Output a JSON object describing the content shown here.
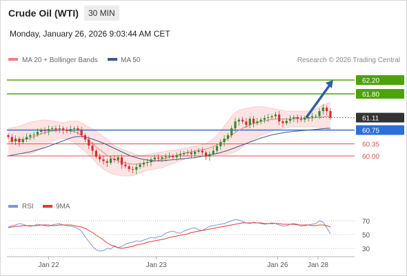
{
  "header": {
    "title": "Crude Oil (WTI)",
    "timeframe": "30 MIN",
    "timestamp": "Monday, January 26, 2026 9:03:44 AM CET"
  },
  "legend": {
    "ma20": "MA 20 + Bollinger Bands",
    "ma50": "MA 50",
    "rsi": "RSI",
    "ma9": "9MA",
    "colors": {
      "ma20": "#f08080",
      "ma50": "#3d5a8c",
      "rsi": "#7f95d6",
      "ma9": "#e53935"
    }
  },
  "research_credit": "Research © 2026 Trading Central",
  "chart_data": [
    {
      "type": "candlestick",
      "ylim": [
        59.2,
        62.6
      ],
      "xlim": [
        0,
        100
      ],
      "x_ticks": [
        {
          "label": "Jan 22",
          "x": 12
        },
        {
          "label": "Jan 23",
          "x": 44
        },
        {
          "label": "Jan 26",
          "x": 80
        },
        {
          "label": "Jan 28",
          "x": 92
        }
      ],
      "levels": [
        {
          "value": 62.2,
          "label": "62.20",
          "role": "target",
          "color": "#4ea20a",
          "style": "badge"
        },
        {
          "value": 61.8,
          "label": "61.80",
          "role": "resistance",
          "color": "#4ea20a",
          "style": "badge"
        },
        {
          "value": 61.11,
          "label": "61.11",
          "role": "last-price",
          "color": "#333333",
          "style": "badge-dark"
        },
        {
          "value": 60.75,
          "label": "60.75",
          "role": "pivot",
          "color": "#2c6fd6",
          "style": "badge"
        },
        {
          "value": 60.35,
          "label": "60.35",
          "role": "support",
          "color": "#e05050",
          "style": "text"
        },
        {
          "value": 60.0,
          "label": "60.00",
          "role": "support",
          "color": "#e05050",
          "style": "text"
        }
      ],
      "arrow": {
        "from": {
          "x": 88.5,
          "y": 61.11
        },
        "to": {
          "x": 96.5,
          "y": 62.2
        },
        "color": "#2f5f9e"
      },
      "closes": [
        60.55,
        60.42,
        60.5,
        60.4,
        60.48,
        60.55,
        60.6,
        60.62,
        60.7,
        60.75,
        60.72,
        60.78,
        60.8,
        60.77,
        60.8,
        60.75,
        60.72,
        60.78,
        60.8,
        60.74,
        60.6,
        60.48,
        60.3,
        60.15,
        59.98,
        59.9,
        59.85,
        59.8,
        59.92,
        59.88,
        59.96,
        59.75,
        59.7,
        59.62,
        59.6,
        59.68,
        59.75,
        59.8,
        59.82,
        59.9,
        59.95,
        59.92,
        59.96,
        59.98,
        60.0,
        59.96,
        60.02,
        60.05,
        60.08,
        60.1,
        60.05,
        60.12,
        60.15,
        60.1,
        59.98,
        60.05,
        60.15,
        60.28,
        60.4,
        60.5,
        60.6,
        60.8,
        61.0,
        61.05,
        61.0,
        60.9,
        61.08,
        60.95,
        61.0,
        61.05,
        61.1,
        61.12,
        61.15,
        61.2,
        61.0,
        60.95,
        61.02,
        61.08,
        61.12,
        61.08,
        61.05,
        61.1,
        61.12,
        61.15,
        61.15,
        61.3,
        61.4,
        61.3,
        61.11
      ],
      "ma20": [
        60.4,
        60.42,
        60.44,
        60.46,
        60.48,
        60.5,
        60.52,
        60.56,
        60.6,
        60.64,
        60.68,
        60.7,
        60.72,
        60.73,
        60.74,
        60.75,
        60.74,
        60.72,
        60.7,
        60.66,
        60.6,
        60.52,
        60.44,
        60.36,
        60.26,
        60.18,
        60.1,
        60.02,
        59.96,
        59.9,
        59.86,
        59.82,
        59.8,
        59.78,
        59.76,
        59.76,
        59.77,
        59.79,
        59.81,
        59.83,
        59.85,
        59.87,
        59.9,
        59.93,
        59.96,
        59.99,
        60.02,
        60.05,
        60.08,
        60.1,
        60.12,
        60.14,
        60.16,
        60.18,
        60.2,
        60.23,
        60.27,
        60.32,
        60.38,
        60.44,
        60.52,
        60.6,
        60.68,
        60.74,
        60.8,
        60.85,
        60.9,
        60.94,
        60.97,
        61.0,
        61.02,
        61.04,
        61.06,
        61.07,
        61.07,
        61.07,
        61.07,
        61.07,
        61.08,
        61.08,
        61.08,
        61.09,
        61.09,
        61.1,
        61.11,
        61.12,
        61.14,
        61.15,
        61.15
      ],
      "ma50": [
        60.0,
        60.02,
        60.04,
        60.06,
        60.08,
        60.1,
        60.12,
        60.15,
        60.18,
        60.21,
        60.24,
        60.28,
        60.32,
        60.36,
        60.4,
        60.44,
        60.48,
        60.52,
        60.55,
        60.56,
        60.56,
        60.55,
        60.52,
        60.49,
        60.45,
        60.41,
        60.37,
        60.32,
        60.27,
        60.22,
        60.17,
        60.12,
        60.07,
        60.02,
        59.98,
        59.95,
        59.92,
        59.9,
        59.88,
        59.87,
        59.86,
        59.86,
        59.86,
        59.87,
        59.88,
        59.89,
        59.9,
        59.91,
        59.92,
        59.93,
        59.94,
        59.95,
        59.97,
        59.99,
        60.01,
        60.03,
        60.05,
        60.07,
        60.1,
        60.13,
        60.16,
        60.2,
        60.24,
        60.28,
        60.32,
        60.36,
        60.4,
        60.44,
        60.48,
        60.52,
        60.55,
        60.58,
        60.61,
        60.63,
        60.65,
        60.67,
        60.69,
        60.7,
        60.71,
        60.72,
        60.73,
        60.74,
        60.75,
        60.76,
        60.77,
        60.78,
        60.79,
        60.8,
        60.8
      ],
      "bb_upper": [
        60.8,
        60.82,
        60.84,
        60.86,
        60.9,
        60.94,
        60.98,
        61.0,
        61.02,
        61.04,
        61.04,
        61.03,
        61.02,
        61.0,
        60.98,
        60.97,
        60.98,
        61.0,
        61.02,
        61.0,
        60.96,
        60.9,
        60.84,
        60.78,
        60.72,
        60.64,
        60.56,
        60.48,
        60.38,
        60.3,
        60.24,
        60.2,
        60.16,
        60.12,
        60.08,
        60.04,
        60.02,
        60.02,
        60.04,
        60.06,
        60.08,
        60.1,
        60.12,
        60.14,
        60.15,
        60.16,
        60.18,
        60.2,
        60.22,
        60.24,
        60.26,
        60.28,
        60.3,
        60.32,
        60.36,
        60.42,
        60.5,
        60.6,
        60.72,
        60.86,
        61.0,
        61.14,
        61.26,
        61.32,
        61.36,
        61.38,
        61.4,
        61.42,
        61.43,
        61.43,
        61.42,
        61.4,
        61.38,
        61.36,
        61.34,
        61.32,
        61.3,
        61.3,
        61.3,
        61.3,
        61.3,
        61.3,
        61.3,
        61.32,
        61.36,
        61.42,
        61.48,
        61.52,
        61.55
      ],
      "bb_lower": [
        60.0,
        60.02,
        60.04,
        60.06,
        60.06,
        60.06,
        60.06,
        60.1,
        60.16,
        60.22,
        60.3,
        60.36,
        60.42,
        60.46,
        60.5,
        60.52,
        60.5,
        60.44,
        60.38,
        60.3,
        60.22,
        60.12,
        60.02,
        59.92,
        59.8,
        59.7,
        59.62,
        59.56,
        59.5,
        59.46,
        59.44,
        59.42,
        59.42,
        59.42,
        59.43,
        59.46,
        59.5,
        59.55,
        59.58,
        59.6,
        59.62,
        59.64,
        59.66,
        59.7,
        59.74,
        59.78,
        59.82,
        59.86,
        59.9,
        59.94,
        59.98,
        60.0,
        60.02,
        60.04,
        60.04,
        60.04,
        60.04,
        60.04,
        60.04,
        60.04,
        60.05,
        60.08,
        60.12,
        60.18,
        60.26,
        60.34,
        60.42,
        60.48,
        60.54,
        60.6,
        60.64,
        60.68,
        60.72,
        60.76,
        60.78,
        60.8,
        60.82,
        60.84,
        60.84,
        60.84,
        60.84,
        60.84,
        60.84,
        60.84,
        60.84,
        60.82,
        60.8,
        60.78,
        60.76
      ]
    },
    {
      "type": "line",
      "ylim": [
        20,
        80
      ],
      "y_ticks": [
        30,
        50,
        70
      ],
      "reference_lines": [
        30,
        50,
        70
      ],
      "series": [
        {
          "name": "RSI",
          "color": "#7f95d6",
          "values": [
            61,
            63,
            64,
            66,
            65,
            63,
            62,
            63,
            65,
            64,
            63,
            62,
            64,
            65,
            66,
            64,
            63,
            62,
            61,
            59,
            55,
            47,
            40,
            33,
            28,
            26,
            27,
            30,
            29,
            34,
            31,
            33,
            36,
            38,
            39,
            41,
            40,
            42,
            44,
            46,
            45,
            47,
            48,
            52,
            54,
            55,
            53,
            52,
            55,
            57,
            59,
            60,
            57,
            56,
            59,
            62,
            63,
            64,
            65,
            66,
            68,
            70,
            72,
            71,
            69,
            67,
            66,
            68,
            67,
            66,
            65,
            66,
            67,
            66,
            64,
            62,
            63,
            65,
            66,
            65,
            62,
            63,
            64,
            65,
            66,
            70,
            68,
            60,
            51
          ]
        },
        {
          "name": "9MA",
          "color": "#e53935",
          "values": [
            60,
            61,
            62,
            62,
            63,
            63,
            63,
            63,
            63,
            64,
            64,
            64,
            63,
            63,
            64,
            64,
            64,
            64,
            63,
            62,
            61,
            59,
            56,
            53,
            49,
            46,
            42,
            38,
            35,
            33,
            31,
            30,
            31,
            32,
            33,
            35,
            36,
            37,
            39,
            40,
            41,
            42,
            43,
            44,
            46,
            47,
            48,
            49,
            50,
            51,
            53,
            54,
            55,
            56,
            57,
            58,
            59,
            60,
            61,
            62,
            63,
            64,
            65,
            66,
            67,
            67,
            67,
            67,
            67,
            67,
            66,
            66,
            66,
            66,
            66,
            65,
            65,
            65,
            65,
            64,
            64,
            64,
            64,
            63,
            63,
            64,
            64,
            63,
            61
          ]
        }
      ],
      "x_ticks": [
        "Jan 22",
        "Jan 23",
        "Jan 26",
        "Jan 28"
      ]
    }
  ]
}
